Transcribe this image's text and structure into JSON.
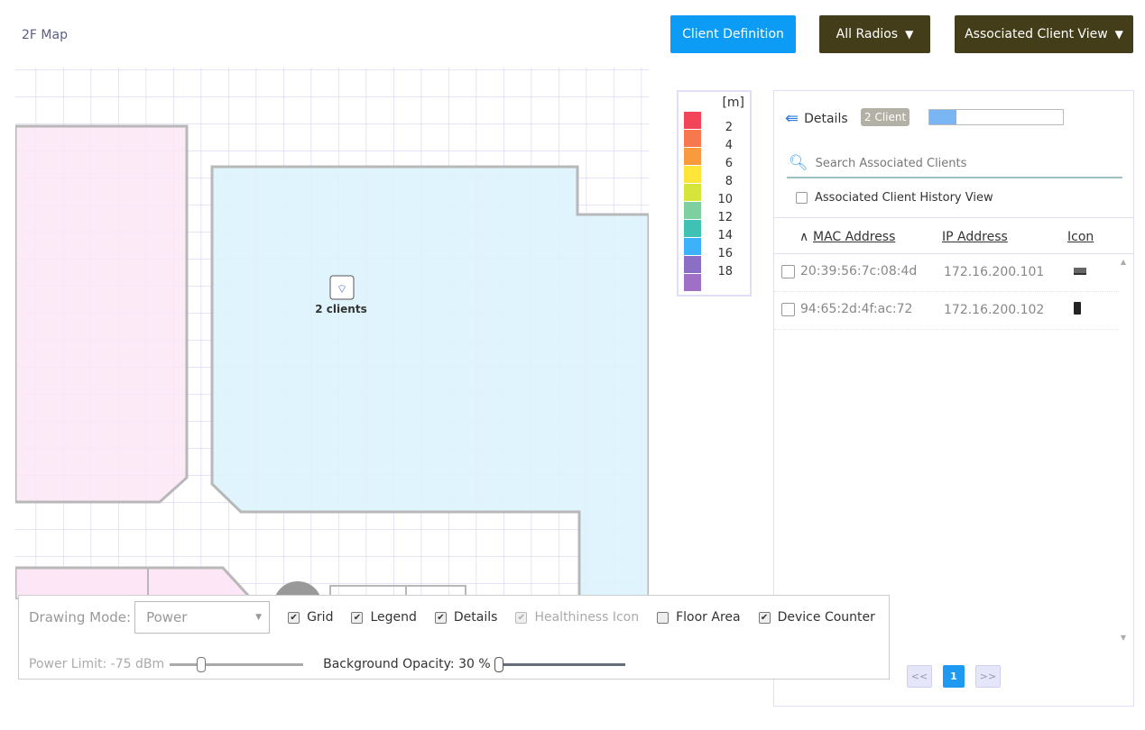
{
  "header": {
    "title": "2F Map",
    "client_definition": "Client Definition",
    "all_radios": "All Radios",
    "view": "Associated Client View"
  },
  "map": {
    "ap_label": "2 clients",
    "ap_icon": "wifi-icon"
  },
  "legend": {
    "unit": "[m]",
    "items": [
      {
        "label": "2",
        "color": "#f2455a"
      },
      {
        "label": "4",
        "color": "#f7784f"
      },
      {
        "label": "6",
        "color": "#fa9a3e"
      },
      {
        "label": "8",
        "color": "#fde53a"
      },
      {
        "label": "10",
        "color": "#d7e43a"
      },
      {
        "label": "12",
        "color": "#7fd0a0"
      },
      {
        "label": "14",
        "color": "#3fc2b3"
      },
      {
        "label": "16",
        "color": "#3cb2fa"
      },
      {
        "label": "18",
        "color": "#8b6fc4"
      },
      {
        "label": "",
        "color": "#a070c6"
      }
    ]
  },
  "details": {
    "title": "Details",
    "badge": "2 Client",
    "progress_fraction": 0.2,
    "search_placeholder": "Search Associated Clients",
    "history_label": "Associated Client History View",
    "history_checked": false,
    "columns": [
      "MAC Address",
      "IP Address",
      "Icon"
    ],
    "sort": "ascending",
    "rows": [
      {
        "mac": "20:39:56:7c:08:4d",
        "ip": "172.16.200.101",
        "icon": "laptop-icon"
      },
      {
        "mac": "94:65:2d:4f:ac:72",
        "ip": "172.16.200.102",
        "icon": "phone-icon"
      }
    ],
    "pager": {
      "prev": "<<",
      "page": "1",
      "next": ">>"
    }
  },
  "controls": {
    "drawing_mode_label": "Drawing Mode:",
    "drawing_mode": "Power",
    "checkboxes": [
      {
        "label": "Grid",
        "checked": true
      },
      {
        "label": "Legend",
        "checked": true
      },
      {
        "label": "Details",
        "checked": true
      },
      {
        "label": "Healthiness Icon",
        "checked": true,
        "disabled": true
      },
      {
        "label": "Floor Area",
        "checked": false
      },
      {
        "label": "Device Counter",
        "checked": true
      }
    ],
    "power_limit_label": "Power Limit: -75 dBm",
    "background_opacity_label": "Background Opacity: 30 %",
    "power_limit_fraction": 0.22,
    "opacity_fraction": 0.0
  }
}
